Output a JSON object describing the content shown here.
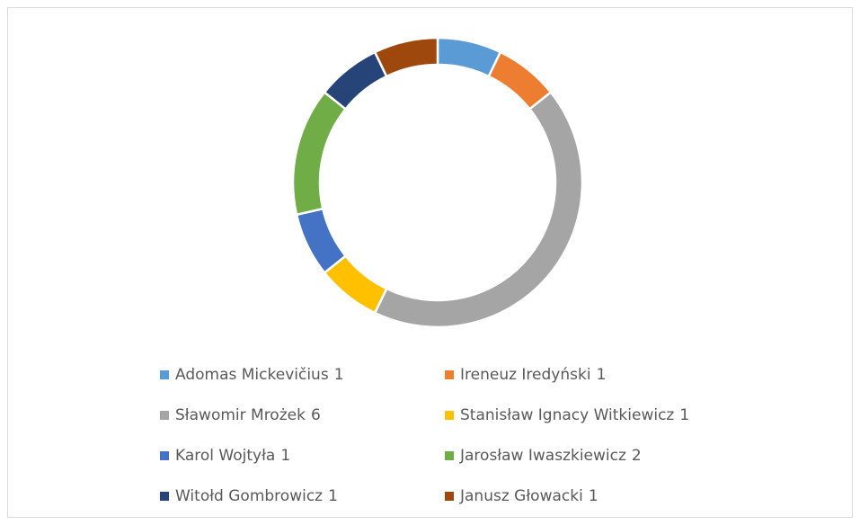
{
  "chart_data": {
    "type": "donut",
    "categories": [
      "Adomas Mickevičius",
      "Ireneuz Iredyński",
      "Sławomir Mrożek",
      "Stanisław Ignacy Witkiewicz",
      "Karol Wojtyła",
      "Jarosław Iwaszkiewicz",
      "Witołd Gombrowicz",
      "Janusz Głowacki"
    ],
    "values": [
      1,
      1,
      6,
      1,
      1,
      2,
      1,
      1
    ],
    "colors": [
      "#5b9bd5",
      "#ed7d31",
      "#a5a5a5",
      "#ffc000",
      "#4472c4",
      "#70ad47",
      "#264478",
      "#9e480e"
    ],
    "legend": "bottom"
  }
}
